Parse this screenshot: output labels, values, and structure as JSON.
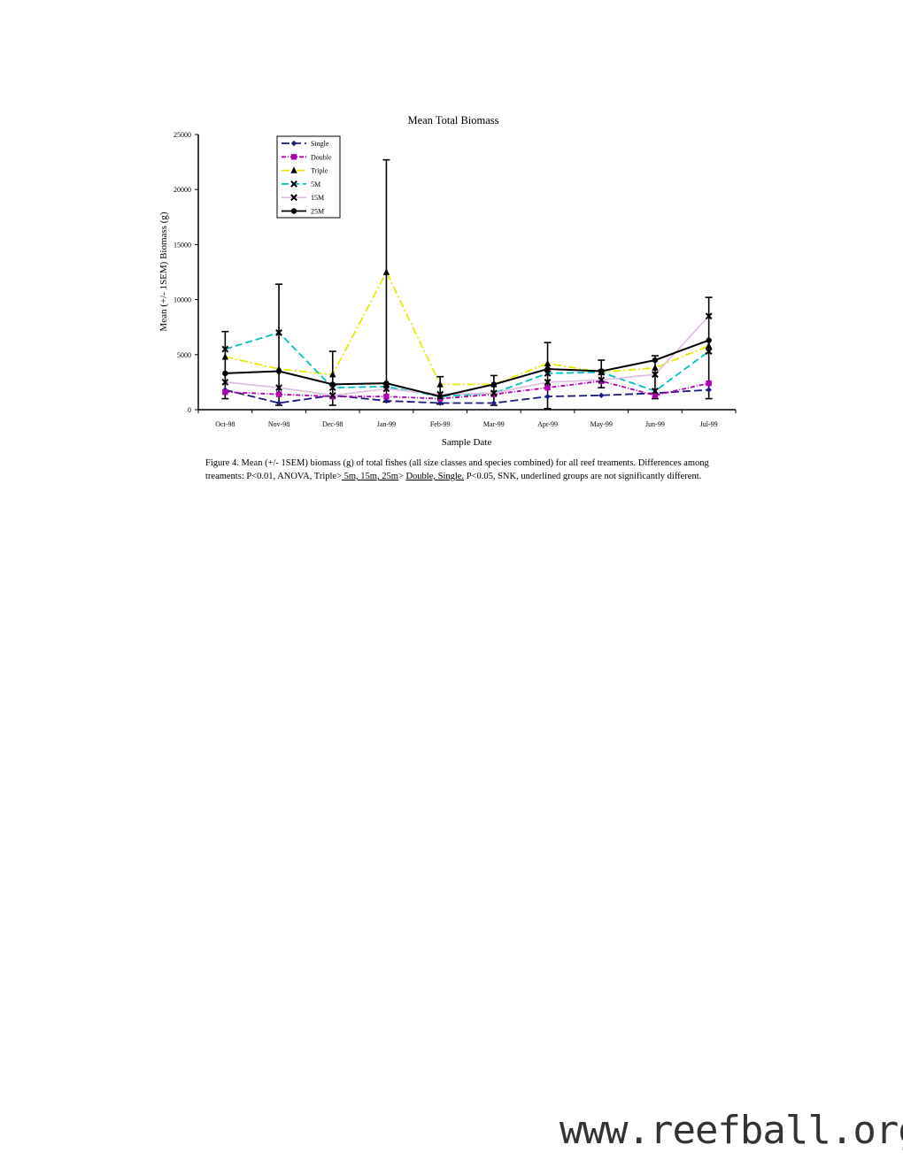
{
  "chart_data": {
    "type": "line",
    "title": "Mean Total Biomass",
    "xlabel": "Sample Date",
    "ylabel": "Mean (+/- 1SEM) Biomass (g)",
    "ylim": [
      0,
      25000
    ],
    "yticks": [
      0,
      5000,
      10000,
      15000,
      20000,
      25000
    ],
    "categories": [
      "Oct-98",
      "Nov-98",
      "Dec-98",
      "Jan-99",
      "Feb-99",
      "Mar-99",
      "Apr-99",
      "May-99",
      "Jun-99",
      "Jul-99"
    ],
    "legend_position": "top-left",
    "series": [
      {
        "name": "Single",
        "color": "#1a1a80",
        "dash": "9,4",
        "marker": "diamond",
        "values": [
          1800,
          600,
          1300,
          800,
          600,
          600,
          1200,
          1300,
          1500,
          1800
        ]
      },
      {
        "name": "Double",
        "color": "#b000b0",
        "dash": "5,2,1,2",
        "marker": "square",
        "values": [
          1600,
          1400,
          1200,
          1200,
          1000,
          1400,
          2000,
          2600,
          1300,
          2400
        ]
      },
      {
        "name": "Triple",
        "color": "#e8e800",
        "dash": "9,3,2,3",
        "marker": "triangle",
        "values": [
          4800,
          3700,
          3200,
          12500,
          2300,
          2300,
          4200,
          3400,
          3800,
          5800
        ]
      },
      {
        "name": "5M",
        "color": "#00c0c0",
        "dash": "8,4",
        "marker": "x",
        "values": [
          5500,
          7000,
          2000,
          2100,
          1200,
          1500,
          3300,
          3400,
          1700,
          5300
        ]
      },
      {
        "name": "15M",
        "color": "#e0c0e0",
        "dash": "",
        "marker": "x",
        "values": [
          2500,
          2000,
          1300,
          1900,
          1400,
          1500,
          2500,
          2700,
          3200,
          8500
        ]
      },
      {
        "name": "25M",
        "color": "#000000",
        "dash": "",
        "marker": "circle",
        "values": [
          3300,
          3500,
          2300,
          2400,
          1200,
          2300,
          3700,
          3500,
          4500,
          6300
        ]
      }
    ],
    "error_bars": [
      {
        "category": "Oct-98",
        "low": 1000,
        "high": 7100
      },
      {
        "category": "Nov-98",
        "low": 400,
        "high": 11400
      },
      {
        "category": "Dec-98",
        "low": 400,
        "high": 5300
      },
      {
        "category": "Jan-99",
        "low": 700,
        "high": 22700
      },
      {
        "category": "Feb-99",
        "low": 500,
        "high": 3000
      },
      {
        "category": "Mar-99",
        "low": 400,
        "high": 3100
      },
      {
        "category": "Apr-99",
        "low": 100,
        "high": 6100
      },
      {
        "category": "May-99",
        "low": 2000,
        "high": 4500
      },
      {
        "category": "Jun-99",
        "low": 1000,
        "high": 4900
      },
      {
        "category": "Jul-99",
        "low": 1000,
        "high": 10200
      }
    ]
  },
  "caption": {
    "part1": "Figure 4.  Mean (+/- 1SEM) biomass (g) of total fishes (all size classes and species combined) for all reef treaments.  Differences among treaments:  P<0.01, ANOVA, Triple>",
    "group1": "  5m, 15m, 25m",
    "part2": "> ",
    "group2": "Double, Single.",
    "part3": " P<0.05, SNK, underlined groups are not significantly different."
  },
  "watermark": "www.reefball.org"
}
